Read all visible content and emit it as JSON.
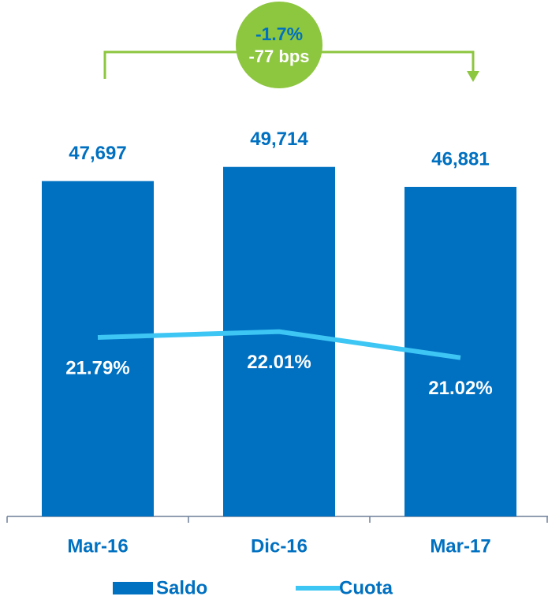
{
  "chart_data": {
    "type": "bar",
    "categories": [
      "Mar-16",
      "Dic-16",
      "Mar-17"
    ],
    "series": [
      {
        "name": "Saldo",
        "type": "bar",
        "color": "#0070c0",
        "values": [
          47697,
          49714,
          46881
        ],
        "value_labels": [
          "47,697",
          "49,714",
          "46,881"
        ]
      },
      {
        "name": "Cuota",
        "type": "line",
        "axis": "y2",
        "color": "#3dc6f4",
        "values": [
          21.79,
          22.01,
          21.02
        ],
        "value_labels": [
          "21.79%",
          "22.01%",
          "21.02%"
        ]
      }
    ],
    "ylim": [
      0,
      60000
    ],
    "y2lim": [
      15,
      31
    ],
    "annotations": [
      "-1.7%",
      "-77 bps"
    ],
    "legend": "bottom"
  }
}
